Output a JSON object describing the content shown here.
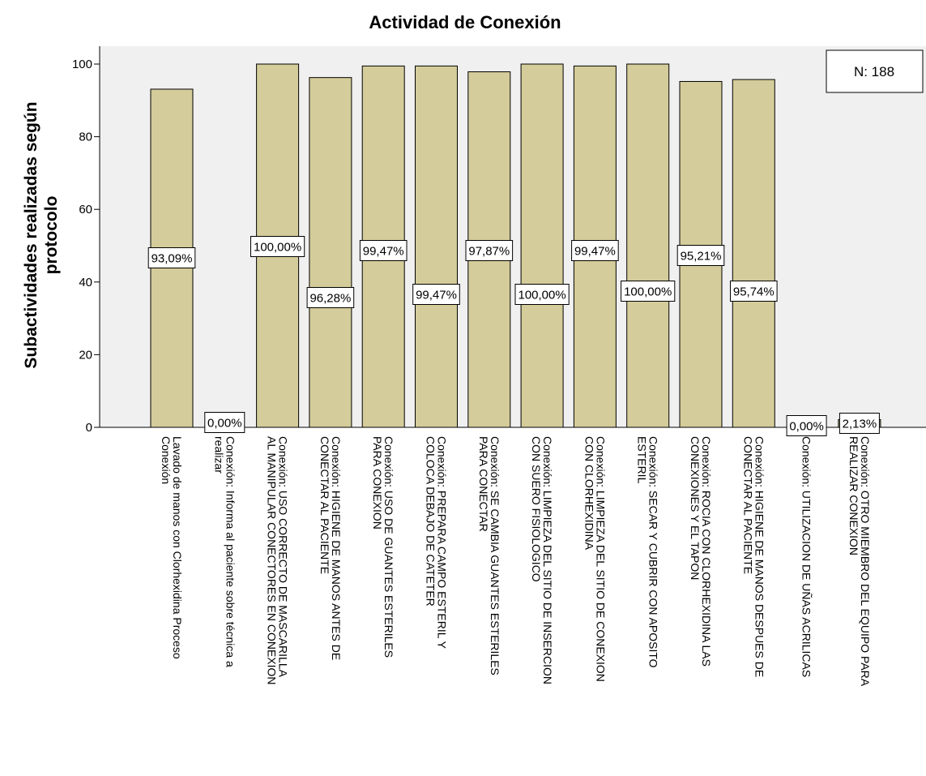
{
  "chart_data": {
    "type": "bar",
    "title": "Actividad de Conexión",
    "ylabel": [
      "Subactividades realizadas según",
      "protocolo"
    ],
    "xlabel": "",
    "ylim": [
      0,
      100
    ],
    "yticks": [
      0,
      20,
      40,
      60,
      80,
      100
    ],
    "grid": false,
    "annotation": "N: 188",
    "bar_color": "#d4cc9a",
    "plot_bg": "#f0f0f0",
    "categories": [
      [
        "Lavado de manos con Clorhexidina Proceso",
        "Conexión"
      ],
      [
        "Conexión: Informa al paciente sobre técnica a",
        "realizar"
      ],
      [
        "Conexión: USO CORRECTO DE MASCARILLA",
        "AL MANIPULAR CONECTORES EN CONEXION"
      ],
      [
        "Conexión: HIGIENE DE MANOS ANTES DE",
        "CONECTAR AL PACIENTE"
      ],
      [
        "Conexión: USO DE GUANTES ESTERILES",
        "PARA CONEXION"
      ],
      [
        "Conexión: PREPARA CAMPO ESTERIL Y",
        "COLOCA DEBAJO DE CATETER"
      ],
      [
        "Conexión: SE CAMBIA GUANTES ESTERILES",
        "PARA CONECTAR"
      ],
      [
        "Conexión: LIMPIEZA DEL SITIO DE INSERCION",
        "CON SUERO FISIOLOGICO"
      ],
      [
        "Conexión: LIMPIEZA DEL SITIO DE CONEXION",
        "CON CLORHEXIDINA"
      ],
      [
        "Conexión: SECAR Y CUBRIR CON APOSITO",
        "ESTERIL"
      ],
      [
        "Conexión: ROCIA CON CLORHEXIDINA LAS",
        "CONEXIONES Y EL TAPON"
      ],
      [
        "Conexión: HIGIENE DE MANOS DESPUES DE",
        "CONECTAR AL PACIENTE"
      ],
      [
        "Conexión: UTILIZACION DE UÑAS ACRILICAS"
      ],
      [
        "Conexión: OTRO MIEMBRO DEL EQUIPO PARA",
        "REALIZAR CONEXION"
      ]
    ],
    "values": [
      93.09,
      0,
      100,
      96.28,
      99.47,
      99.47,
      97.87,
      100,
      99.47,
      100,
      95.21,
      95.74,
      0,
      2.13
    ],
    "data_labels": [
      "93,09%",
      "0,00%",
      "100,00%",
      "96,28%",
      "99,47%",
      "99,47%",
      "97,87%",
      "100,00%",
      "99,47%",
      "100,00%",
      "95,21%",
      "95,74%",
      "0,00%",
      "2,13%"
    ]
  }
}
